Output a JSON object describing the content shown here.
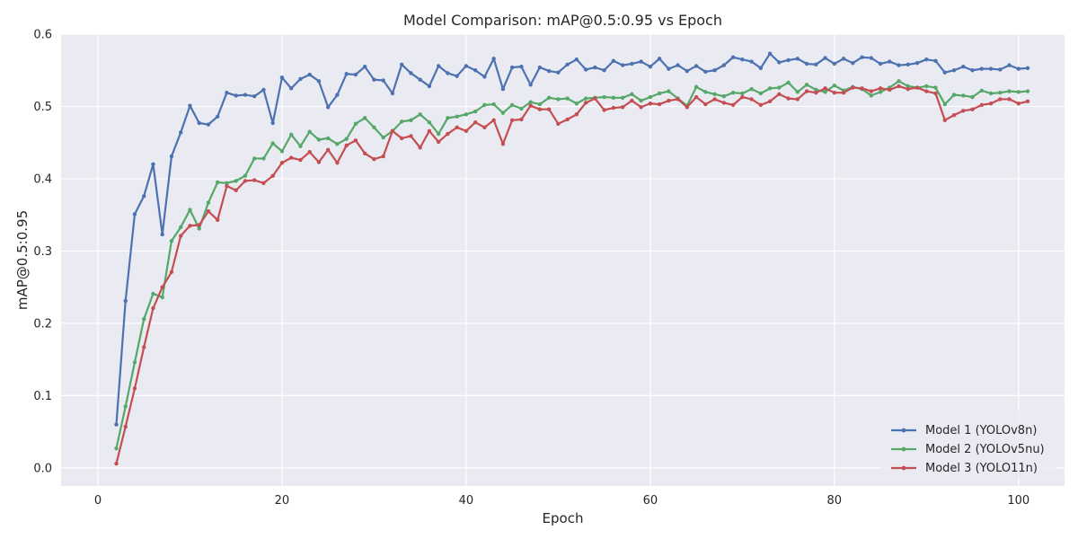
{
  "chart_data": {
    "type": "line",
    "title": "Model Comparison: mAP@0.5:0.95 vs Epoch",
    "xlabel": "Epoch",
    "ylabel": "mAP@0.5:0.95",
    "xlim": [
      -4,
      105
    ],
    "ylim": [
      -0.025,
      0.6
    ],
    "xticks": [
      0,
      20,
      40,
      60,
      80,
      100
    ],
    "yticks": [
      0.0,
      0.1,
      0.2,
      0.3,
      0.4,
      0.5,
      0.6
    ],
    "xtick_labels": [
      "0",
      "20",
      "40",
      "60",
      "80",
      "100"
    ],
    "ytick_labels": [
      "0.0",
      "0.1",
      "0.2",
      "0.3",
      "0.4",
      "0.5",
      "0.6"
    ],
    "grid": true,
    "legend_position": "lower-right",
    "x": [
      2,
      3,
      4,
      5,
      6,
      7,
      8,
      9,
      10,
      11,
      12,
      13,
      14,
      15,
      16,
      17,
      18,
      19,
      20,
      21,
      22,
      23,
      24,
      25,
      26,
      27,
      28,
      29,
      30,
      31,
      32,
      33,
      34,
      35,
      36,
      37,
      38,
      39,
      40,
      41,
      42,
      43,
      44,
      45,
      46,
      47,
      48,
      49,
      50,
      51,
      52,
      53,
      54,
      55,
      56,
      57,
      58,
      59,
      60,
      61,
      62,
      63,
      64,
      65,
      66,
      67,
      68,
      69,
      70,
      71,
      72,
      73,
      74,
      75,
      76,
      77,
      78,
      79,
      80,
      81,
      82,
      83,
      84,
      85,
      86,
      87,
      88,
      89,
      90,
      91,
      92,
      93,
      94,
      95,
      96,
      97,
      98,
      99,
      100,
      101
    ],
    "series": [
      {
        "name": "Model 1 (YOLOv8n)",
        "color": "#4c72b0",
        "values": [
          0.06,
          0.231,
          0.351,
          0.376,
          0.42,
          0.323,
          0.431,
          0.464,
          0.501,
          0.477,
          0.475,
          0.486,
          0.519,
          0.515,
          0.516,
          0.514,
          0.523,
          0.477,
          0.54,
          0.525,
          0.538,
          0.544,
          0.535,
          0.499,
          0.516,
          0.545,
          0.544,
          0.555,
          0.537,
          0.536,
          0.518,
          0.558,
          0.546,
          0.537,
          0.528,
          0.556,
          0.546,
          0.542,
          0.556,
          0.55,
          0.541,
          0.566,
          0.524,
          0.554,
          0.555,
          0.53,
          0.554,
          0.549,
          0.547,
          0.558,
          0.565,
          0.551,
          0.554,
          0.55,
          0.563,
          0.557,
          0.559,
          0.562,
          0.555,
          0.566,
          0.552,
          0.557,
          0.549,
          0.556,
          0.548,
          0.55,
          0.557,
          0.568,
          0.565,
          0.562,
          0.553,
          0.573,
          0.561,
          0.564,
          0.566,
          0.559,
          0.558,
          0.567,
          0.559,
          0.566,
          0.56,
          0.568,
          0.567,
          0.559,
          0.562,
          0.557,
          0.558,
          0.56,
          0.565,
          0.563,
          0.547,
          0.55,
          0.555,
          0.55,
          0.552,
          0.552,
          0.551,
          0.557,
          0.552,
          0.553
        ]
      },
      {
        "name": "Model 2 (YOLOv5nu)",
        "color": "#55a868",
        "values": [
          0.027,
          0.085,
          0.146,
          0.206,
          0.241,
          0.236,
          0.314,
          0.333,
          0.357,
          0.331,
          0.367,
          0.395,
          0.394,
          0.397,
          0.404,
          0.428,
          0.428,
          0.449,
          0.438,
          0.461,
          0.445,
          0.465,
          0.454,
          0.456,
          0.448,
          0.455,
          0.476,
          0.484,
          0.471,
          0.457,
          0.466,
          0.479,
          0.481,
          0.489,
          0.478,
          0.462,
          0.484,
          0.486,
          0.489,
          0.493,
          0.502,
          0.503,
          0.491,
          0.502,
          0.497,
          0.506,
          0.503,
          0.512,
          0.51,
          0.511,
          0.504,
          0.511,
          0.512,
          0.513,
          0.512,
          0.512,
          0.517,
          0.508,
          0.513,
          0.518,
          0.521,
          0.511,
          0.501,
          0.527,
          0.52,
          0.517,
          0.514,
          0.519,
          0.518,
          0.524,
          0.518,
          0.525,
          0.526,
          0.533,
          0.52,
          0.53,
          0.523,
          0.52,
          0.529,
          0.522,
          0.527,
          0.524,
          0.515,
          0.52,
          0.526,
          0.535,
          0.528,
          0.526,
          0.528,
          0.526,
          0.503,
          0.516,
          0.515,
          0.513,
          0.522,
          0.518,
          0.519,
          0.521,
          0.52,
          0.521
        ]
      },
      {
        "name": "Model 3 (YOLO11n)",
        "color": "#c44e52",
        "values": [
          0.006,
          0.057,
          0.11,
          0.167,
          0.221,
          0.25,
          0.271,
          0.321,
          0.335,
          0.336,
          0.355,
          0.343,
          0.39,
          0.384,
          0.397,
          0.398,
          0.394,
          0.404,
          0.422,
          0.429,
          0.426,
          0.437,
          0.423,
          0.44,
          0.422,
          0.446,
          0.453,
          0.435,
          0.427,
          0.431,
          0.466,
          0.456,
          0.459,
          0.443,
          0.466,
          0.451,
          0.462,
          0.471,
          0.466,
          0.478,
          0.471,
          0.481,
          0.448,
          0.481,
          0.482,
          0.501,
          0.496,
          0.496,
          0.476,
          0.482,
          0.489,
          0.505,
          0.511,
          0.495,
          0.498,
          0.499,
          0.508,
          0.499,
          0.504,
          0.503,
          0.508,
          0.51,
          0.499,
          0.513,
          0.503,
          0.51,
          0.505,
          0.502,
          0.513,
          0.51,
          0.502,
          0.507,
          0.517,
          0.511,
          0.51,
          0.521,
          0.519,
          0.525,
          0.519,
          0.519,
          0.526,
          0.525,
          0.521,
          0.525,
          0.523,
          0.528,
          0.524,
          0.526,
          0.521,
          0.518,
          0.481,
          0.488,
          0.494,
          0.496,
          0.502,
          0.504,
          0.51,
          0.51,
          0.504,
          0.507
        ]
      }
    ]
  }
}
